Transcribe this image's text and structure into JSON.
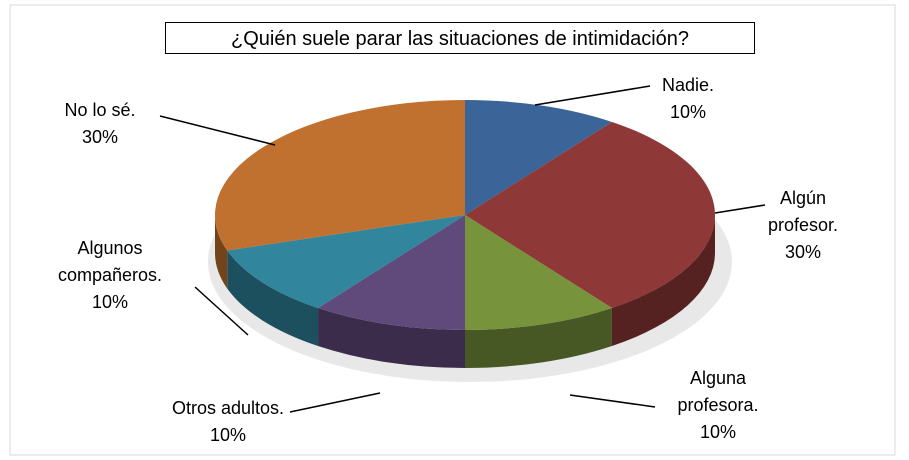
{
  "chart_data": {
    "type": "pie3d",
    "title": "¿Quién suele parar las situaciones de intimidación?",
    "categories": [
      "Nadie.",
      "Algún profesor.",
      "Alguna profesora.",
      "Otros adultos.",
      "Algunos compañeros.",
      "No lo sé."
    ],
    "values": [
      10,
      30,
      10,
      10,
      10,
      30
    ],
    "value_labels": [
      "10%",
      "30%",
      "10%",
      "10%",
      "10%",
      "30%"
    ],
    "colors": [
      "#3b6598",
      "#8e3937",
      "#77933c",
      "#604a7b",
      "#31859c",
      "#c0702f"
    ]
  }
}
